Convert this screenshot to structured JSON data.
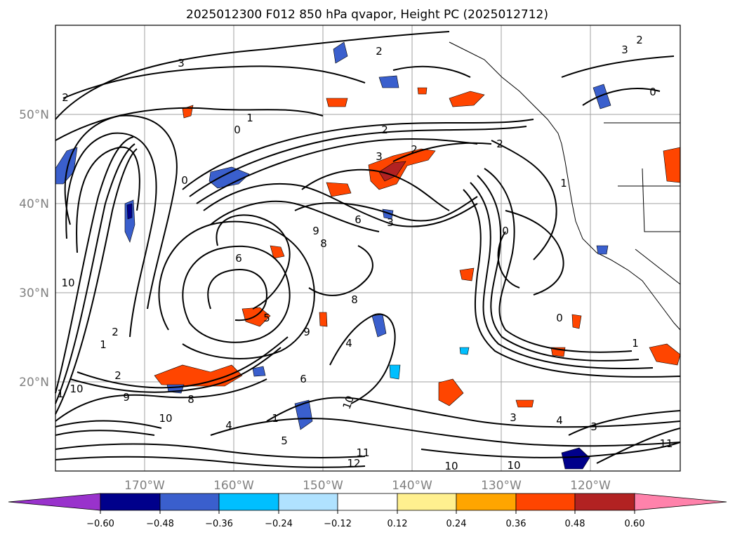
{
  "map": {
    "title": "2025012300 F012 850 hPa qvapor, Height PC (2025012712)",
    "lat_labels": [
      "50°N",
      "40°N",
      "30°N",
      "20°N"
    ],
    "lon_labels": [
      "170°W",
      "160°W",
      "150°W",
      "140°W",
      "130°W",
      "120°W"
    ],
    "contour_labels": [
      "3",
      "2",
      "2",
      "2",
      "3",
      "1",
      "0",
      "2",
      "0",
      "2",
      "3",
      "1",
      "0",
      "2",
      "6",
      "3",
      "9",
      "8",
      "6",
      "0",
      "0",
      "8",
      "5",
      "9",
      "6",
      "1",
      "2",
      "4",
      "10",
      "1",
      "2",
      "10",
      "9",
      "8",
      "10",
      "4",
      "1",
      "5",
      "10",
      "3",
      "4",
      "3",
      "11",
      "12",
      "10",
      "10",
      "1",
      "11"
    ]
  },
  "colorbar": {
    "tick_labels": [
      "−0.60",
      "−0.48",
      "−0.36",
      "−0.24",
      "−0.12",
      "0.12",
      "0.24",
      "0.36",
      "0.48",
      "0.60"
    ],
    "colors": [
      "#9932cc",
      "#00008b",
      "#3a5fcd",
      "#00bfff",
      "#b0e2ff",
      "#ffffff",
      "#fff08f",
      "#ffa500",
      "#ff4500",
      "#b22222",
      "#ff82ab"
    ]
  }
}
